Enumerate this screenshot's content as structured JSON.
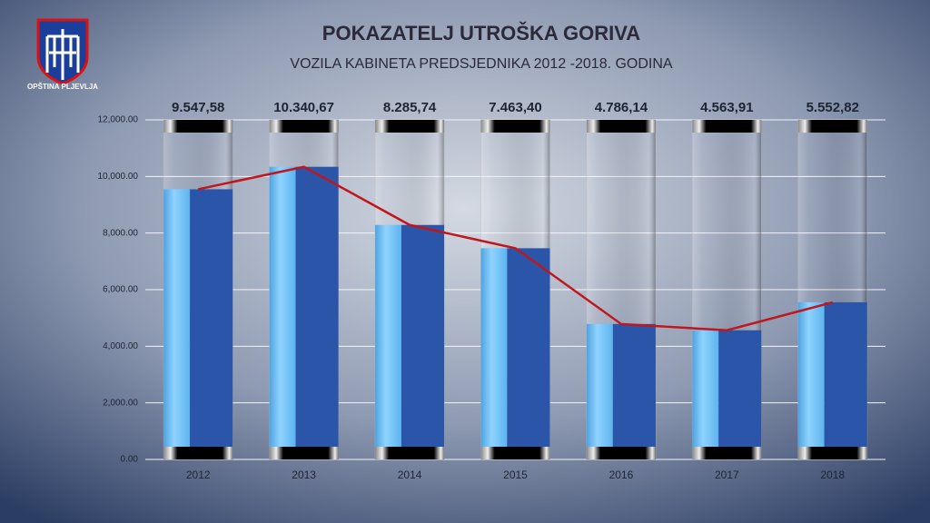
{
  "logo": {
    "text": "OPŠTINA PLJEVLJA"
  },
  "chart_data": {
    "type": "bar",
    "title": "POKAZATELJ UTROŠKA GORIVA",
    "subtitle": "VOZILA KABINETA PREDSJEDNIKA 2012 -2018. GODINA",
    "categories": [
      "2012",
      "2013",
      "2014",
      "2015",
      "2016",
      "2017",
      "2018"
    ],
    "series": [
      {
        "type": "bar",
        "color": "#2a55a8",
        "values": [
          9547.58,
          10340.67,
          8285.74,
          7463.4,
          4786.14,
          4563.91,
          5552.82
        ],
        "value_labels": [
          "9.547,58",
          "10.340,67",
          "8.285,74",
          "7.463,40",
          "4.786,14",
          "4.563,91",
          "5.552,82"
        ]
      },
      {
        "type": "line",
        "color": "#c0161c",
        "values": [
          9547.58,
          10340.67,
          8285.74,
          7463.4,
          4786.14,
          4563.91,
          5552.82
        ]
      }
    ],
    "ylim": [
      0,
      12000
    ],
    "yticks": [
      {
        "value": 0,
        "label": "0.00"
      },
      {
        "value": 2000,
        "label": "2,000.00"
      },
      {
        "value": 4000,
        "label": "4,000.00"
      },
      {
        "value": 6000,
        "label": "6,000.00"
      },
      {
        "value": 8000,
        "label": "8,000.00"
      },
      {
        "value": 10000,
        "label": "10,000.00"
      },
      {
        "value": 12000,
        "label": "12,000.00"
      }
    ],
    "grid": true
  }
}
